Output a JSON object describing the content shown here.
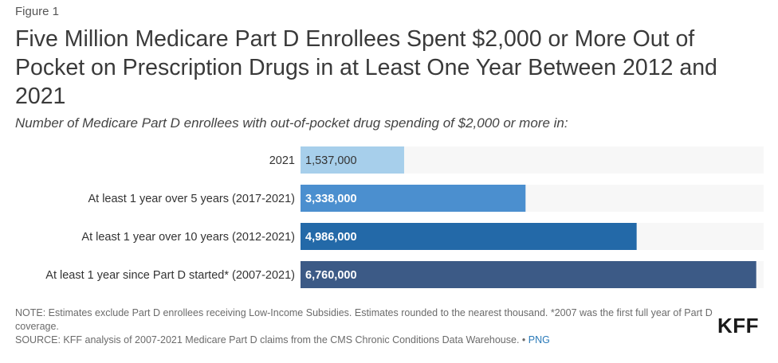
{
  "figure_label": "Figure 1",
  "title": "Five Million Medicare Part D Enrollees Spent $2,000 or More Out of Pocket on Prescription Drugs in at Least One Year Between 2012 and 2021",
  "subtitle": "Number of Medicare Part D enrollees with out-of-pocket drug spending of $2,000 or more in:",
  "chart_data": {
    "type": "bar",
    "orientation": "horizontal",
    "title": "Five Million Medicare Part D Enrollees Spent $2,000 or More Out of Pocket on Prescription Drugs in at Least One Year Between 2012 and 2021",
    "categories": [
      "2021",
      "At least 1 year over 5 years (2017-2021)",
      "At least 1 year over 10 years (2012-2021)",
      "At least 1 year since Part D started* (2007-2021)"
    ],
    "values": [
      1537000,
      3338000,
      4986000,
      6760000
    ],
    "value_labels": [
      "1,537,000",
      "3,338,000",
      "4,986,000",
      "6,760,000"
    ],
    "colors": [
      "#a7cfeb",
      "#4b8fcf",
      "#2369a8",
      "#3c5a86"
    ],
    "label_colors": [
      "#333333",
      "#ffffff",
      "#ffffff",
      "#ffffff"
    ],
    "xlim": [
      0,
      6870000
    ],
    "xlabel": "",
    "ylabel": "",
    "grid": false,
    "legend": "none"
  },
  "notes": {
    "note": "NOTE: Estimates exclude Part D enrollees receiving Low-Income Subsidies. Estimates rounded to the nearest thousand. *2007 was the first full year of Part D coverage.",
    "source_prefix": "SOURCE: KFF analysis of 2007-2021 Medicare Part D claims from the CMS Chronic Conditions Data Warehouse. •",
    "png_link": "PNG"
  },
  "logo": "KFF"
}
